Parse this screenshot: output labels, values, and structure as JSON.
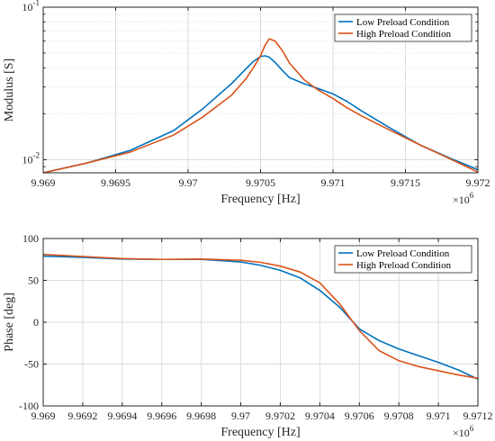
{
  "chart_data": [
    {
      "type": "line",
      "xlabel": "Frequency [Hz]",
      "ylabel": "Modulus [S]",
      "x_exponent_label": "×10",
      "x_exponent_power": "6",
      "xlim": [
        9.969,
        9.972
      ],
      "ylim": [
        0.0082,
        0.1
      ],
      "yscale": "log",
      "grid": true,
      "legend_position": "top-right",
      "xticks": [
        {
          "value": 9.969,
          "label": "9.969"
        },
        {
          "value": 9.9695,
          "label": "9.9695"
        },
        {
          "value": 9.97,
          "label": "9.97"
        },
        {
          "value": 9.9705,
          "label": "9.9705"
        },
        {
          "value": 9.971,
          "label": "9.971"
        },
        {
          "value": 9.9715,
          "label": "9.9715"
        },
        {
          "value": 9.972,
          "label": "9.972"
        }
      ],
      "yticks": [
        {
          "value": 0.01,
          "base": "10",
          "exp": "-2"
        },
        {
          "value": 0.1,
          "base": "10",
          "exp": "-1"
        }
      ],
      "series": [
        {
          "name": "Low Preload Condition",
          "color": "#0072BD",
          "points": [
            [
              9.969,
              0.0082
            ],
            [
              9.9693,
              0.0095
            ],
            [
              9.9696,
              0.0115
            ],
            [
              9.9699,
              0.0155
            ],
            [
              9.9701,
              0.0215
            ],
            [
              9.9703,
              0.0315
            ],
            [
              9.9704,
              0.0395
            ],
            [
              9.97045,
              0.044
            ],
            [
              9.9705,
              0.0475
            ],
            [
              9.97053,
              0.048
            ],
            [
              9.97056,
              0.047
            ],
            [
              9.9706,
              0.0435
            ],
            [
              9.97065,
              0.0385
            ],
            [
              9.9707,
              0.0345
            ],
            [
              9.9708,
              0.0315
            ],
            [
              9.9709,
              0.0292
            ],
            [
              9.971,
              0.027
            ],
            [
              9.9711,
              0.024
            ],
            [
              9.9712,
              0.0208
            ],
            [
              9.9714,
              0.016
            ],
            [
              9.9716,
              0.0125
            ],
            [
              9.9718,
              0.0103
            ],
            [
              9.972,
              0.0086
            ]
          ]
        },
        {
          "name": "High Preload Condition",
          "color": "#D95319",
          "points": [
            [
              9.969,
              0.0082
            ],
            [
              9.9693,
              0.0095
            ],
            [
              9.9696,
              0.0112
            ],
            [
              9.9699,
              0.0145
            ],
            [
              9.9701,
              0.019
            ],
            [
              9.9703,
              0.0265
            ],
            [
              9.9704,
              0.034
            ],
            [
              9.97045,
              0.04
            ],
            [
              9.9705,
              0.048
            ],
            [
              9.97053,
              0.056
            ],
            [
              9.97056,
              0.062
            ],
            [
              9.9706,
              0.06
            ],
            [
              9.97065,
              0.052
            ],
            [
              9.9707,
              0.043
            ],
            [
              9.9708,
              0.0335
            ],
            [
              9.9709,
              0.0285
            ],
            [
              9.971,
              0.0252
            ],
            [
              9.9711,
              0.0218
            ],
            [
              9.9712,
              0.0193
            ],
            [
              9.9714,
              0.0155
            ],
            [
              9.9716,
              0.0125
            ],
            [
              9.9718,
              0.0102
            ],
            [
              9.972,
              0.0083
            ]
          ]
        }
      ]
    },
    {
      "type": "line",
      "xlabel": "Frequency [Hz]",
      "ylabel": "Phase [deg]",
      "x_exponent_label": "×10",
      "x_exponent_power": "6",
      "xlim": [
        9.969,
        9.9712
      ],
      "ylim": [
        -100,
        100
      ],
      "yscale": "linear",
      "grid": true,
      "legend_position": "top-right",
      "xticks": [
        {
          "value": 9.969,
          "label": "9.969"
        },
        {
          "value": 9.9692,
          "label": "9.9692"
        },
        {
          "value": 9.9694,
          "label": "9.9694"
        },
        {
          "value": 9.9696,
          "label": "9.9696"
        },
        {
          "value": 9.9698,
          "label": "9.9698"
        },
        {
          "value": 9.97,
          "label": "9.97"
        },
        {
          "value": 9.9702,
          "label": "9.9702"
        },
        {
          "value": 9.9704,
          "label": "9.9704"
        },
        {
          "value": 9.9706,
          "label": "9.9706"
        },
        {
          "value": 9.9708,
          "label": "9.9708"
        },
        {
          "value": 9.971,
          "label": "9.971"
        },
        {
          "value": 9.9712,
          "label": "9.9712"
        }
      ],
      "yticks": [
        {
          "value": -100,
          "label": "-100"
        },
        {
          "value": -50,
          "label": "-50"
        },
        {
          "value": 0,
          "label": "0"
        },
        {
          "value": 50,
          "label": "50"
        },
        {
          "value": 100,
          "label": "100"
        }
      ],
      "series": [
        {
          "name": "Low Preload Condition",
          "color": "#0072BD",
          "points": [
            [
              9.969,
              79
            ],
            [
              9.9692,
              77.5
            ],
            [
              9.9694,
              75.5
            ],
            [
              9.9696,
              75
            ],
            [
              9.9698,
              75
            ],
            [
              9.97,
              72
            ],
            [
              9.9701,
              68
            ],
            [
              9.9702,
              62
            ],
            [
              9.9703,
              53
            ],
            [
              9.9704,
              38
            ],
            [
              9.9705,
              18
            ],
            [
              9.9706,
              -8
            ],
            [
              9.9707,
              -22
            ],
            [
              9.9708,
              -32
            ],
            [
              9.9709,
              -40
            ],
            [
              9.971,
              -48
            ],
            [
              9.9711,
              -57
            ],
            [
              9.9712,
              -68
            ]
          ]
        },
        {
          "name": "High Preload Condition",
          "color": "#D95319",
          "points": [
            [
              9.969,
              81
            ],
            [
              9.9692,
              78.5
            ],
            [
              9.9694,
              76
            ],
            [
              9.9696,
              75
            ],
            [
              9.9698,
              75.5
            ],
            [
              9.97,
              74
            ],
            [
              9.9701,
              71.5
            ],
            [
              9.9702,
              67
            ],
            [
              9.9703,
              60
            ],
            [
              9.9704,
              47
            ],
            [
              9.9705,
              22
            ],
            [
              9.9706,
              -10
            ],
            [
              9.9707,
              -34
            ],
            [
              9.9708,
              -46
            ],
            [
              9.9709,
              -53
            ],
            [
              9.971,
              -58
            ],
            [
              9.9711,
              -63
            ],
            [
              9.9712,
              -67
            ]
          ]
        }
      ]
    }
  ]
}
